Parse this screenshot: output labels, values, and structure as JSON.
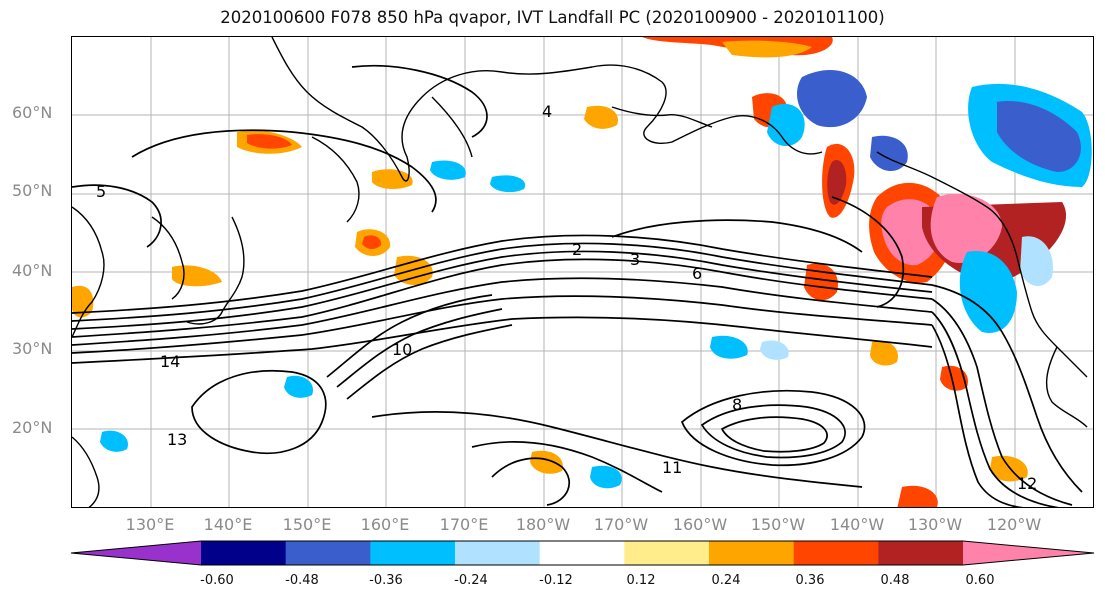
{
  "title": "2020100600 F078 850 hPa qvapor, IVT Landfall PC (2020100900 - 2020101100)",
  "lat_labels": [
    "60°N",
    "50°N",
    "40°N",
    "30°N",
    "20°N"
  ],
  "lon_labels": [
    "130°E",
    "140°E",
    "150°E",
    "160°E",
    "170°E",
    "180°W",
    "170°W",
    "160°W",
    "150°W",
    "140°W",
    "130°W",
    "120°W"
  ],
  "colorbar": {
    "ticks": [
      "-0.60",
      "-0.48",
      "-0.36",
      "-0.24",
      "-0.12",
      "0.12",
      "0.24",
      "0.36",
      "0.48",
      "0.60"
    ],
    "colors": [
      "#9932cc",
      "#00008b",
      "#3a5fcd",
      "#00bfff",
      "#b0e2ff",
      "#ffffff",
      "#ffec8b",
      "#ffa500",
      "#ff4500",
      "#b22222",
      "#ff82ab"
    ]
  },
  "contour_labels": [
    "2",
    "3",
    "4",
    "5",
    "6",
    "8",
    "10",
    "11",
    "12",
    "13",
    "14"
  ]
}
